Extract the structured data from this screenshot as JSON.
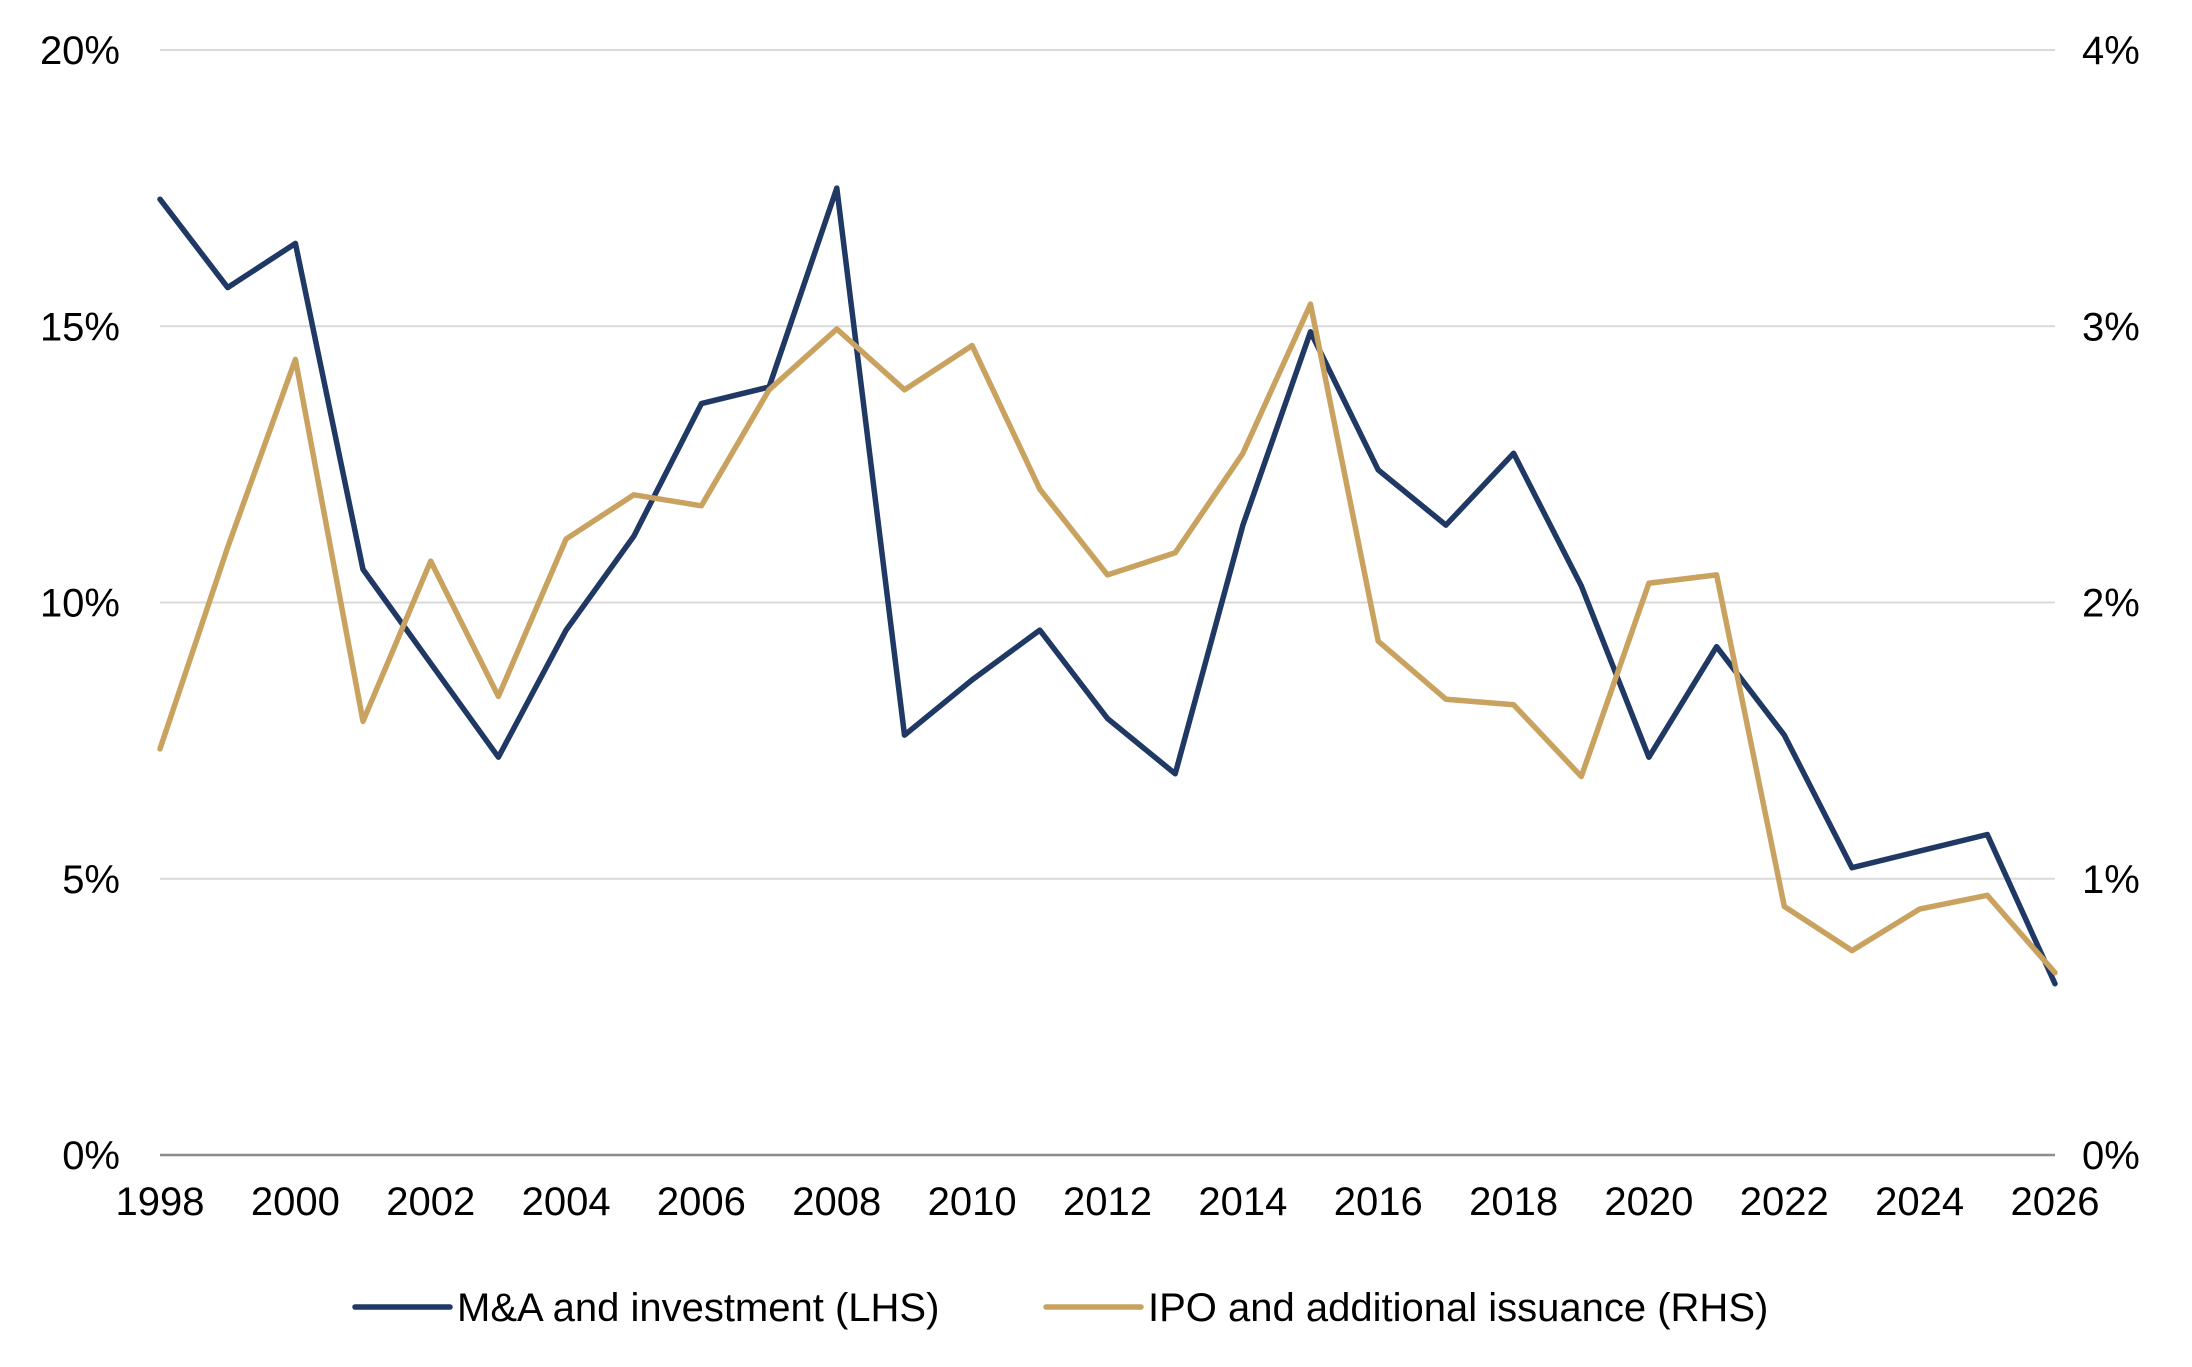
{
  "chart_data": {
    "type": "line",
    "title": "",
    "xlabel": "",
    "ylabel": "",
    "x": [
      1998,
      1999,
      2000,
      2001,
      2002,
      2003,
      2004,
      2005,
      2006,
      2007,
      2008,
      2009,
      2010,
      2011,
      2012,
      2013,
      2014,
      2015,
      2016,
      2017,
      2018,
      2019,
      2020,
      2021,
      2022,
      2023,
      2024,
      2025,
      2026
    ],
    "x_ticks": [
      1998,
      2000,
      2002,
      2004,
      2006,
      2008,
      2010,
      2012,
      2014,
      2016,
      2018,
      2020,
      2022,
      2024,
      2026
    ],
    "x_tick_labels": [
      "1998",
      "2000",
      "2002",
      "2004",
      "2006",
      "2008",
      "2010",
      "2012",
      "2014",
      "2016",
      "2018",
      "2020",
      "2022",
      "2024",
      "2026"
    ],
    "xlim": [
      1998,
      2026
    ],
    "ylim_left": [
      0,
      20
    ],
    "ylim_right": [
      0,
      4
    ],
    "y_left_ticks": [
      0,
      5,
      10,
      15,
      20
    ],
    "y_left_tick_labels": [
      "0%",
      "5%",
      "10%",
      "15%",
      "20%"
    ],
    "y_right_ticks": [
      0,
      1,
      2,
      3,
      4
    ],
    "y_right_tick_labels": [
      "0%",
      "1%",
      "2%",
      "3%",
      "4%"
    ],
    "grid": "horizontal",
    "legend_position": "bottom",
    "series": [
      {
        "name": "M&A and investment (LHS)",
        "axis": "left",
        "color": "#1f3864",
        "values": [
          17.3,
          15.7,
          16.5,
          10.6,
          8.9,
          7.2,
          9.5,
          11.2,
          13.6,
          13.9,
          17.5,
          7.6,
          8.6,
          9.5,
          7.9,
          6.9,
          11.4,
          14.9,
          12.4,
          11.4,
          12.7,
          10.3,
          7.2,
          9.2,
          7.6,
          5.2,
          5.5,
          5.8,
          3.1
        ]
      },
      {
        "name": "IPO and additional issuance (RHS)",
        "axis": "right",
        "color": "#c9a25f",
        "values": [
          1.47,
          2.2,
          2.88,
          1.57,
          2.15,
          1.66,
          2.23,
          2.39,
          2.35,
          2.77,
          2.99,
          2.77,
          2.93,
          2.41,
          2.1,
          2.18,
          2.54,
          3.08,
          1.86,
          1.65,
          1.63,
          1.37,
          2.07,
          2.1,
          0.9,
          0.74,
          0.89,
          0.94,
          0.66
        ]
      }
    ]
  }
}
